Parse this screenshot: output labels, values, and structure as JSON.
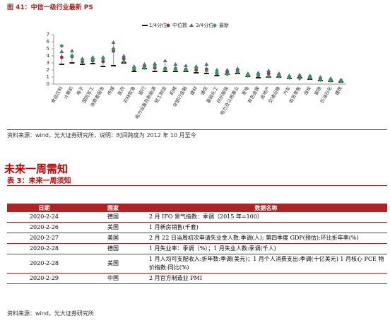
{
  "figure_title": "图 41：中信一级行业最新 PS",
  "chart_data": {
    "type": "range-dots",
    "categories": [
      "食品饮料",
      "计算机",
      "电子",
      "国防军工",
      "消费者服务",
      "传媒",
      "医药",
      "农林牧渔",
      "银行",
      "电力设备及新能源",
      "轻工制造",
      "机械",
      "非银行金融",
      "建材",
      "通信",
      "基础化工",
      "纺织服装",
      "电力及公用事业",
      "家电",
      "有色金属",
      "房地产",
      "交通运输",
      "汽车",
      "商贸零售",
      "煤炭",
      "钢铁",
      "石油石化",
      "建筑"
    ],
    "series": [
      {
        "name": "1/4分位",
        "color": "#000000",
        "marker": "dash",
        "values": [
          2.8,
          3.0,
          2.8,
          2.9,
          2.5,
          2.6,
          3.0,
          1.8,
          2.2,
          1.8,
          1.8,
          1.8,
          1.8,
          1.6,
          1.5,
          1.2,
          1.4,
          1.5,
          1.1,
          0.9,
          1.0,
          1.0,
          0.8,
          0.9,
          0.7,
          0.5,
          0.4,
          0.3
        ]
      },
      {
        "name": "中位数",
        "color": "#9b2d5a",
        "marker": "circle",
        "values": [
          3.8,
          3.9,
          3.2,
          3.3,
          3.2,
          4.7,
          3.6,
          2.1,
          2.5,
          2.3,
          2.2,
          2.2,
          2.1,
          2.0,
          2.1,
          1.5,
          1.7,
          1.8,
          1.3,
          1.2,
          1.5,
          1.2,
          1.0,
          1.1,
          0.9,
          0.7,
          0.6,
          0.5
        ]
      },
      {
        "name": "3/4分位",
        "color": "#4a6fa5",
        "marker": "triangle",
        "values": [
          4.6,
          4.7,
          3.6,
          3.8,
          3.8,
          5.9,
          4.0,
          2.5,
          2.8,
          2.9,
          3.3,
          2.8,
          2.6,
          2.5,
          2.8,
          2.0,
          2.0,
          2.2,
          1.5,
          1.6,
          1.9,
          1.5,
          1.2,
          1.3,
          1.2,
          1.0,
          0.8,
          0.6
        ]
      },
      {
        "name": "最新",
        "color": "#2e9e4f",
        "marker": "diamond",
        "values": [
          5.4,
          4.0,
          3.5,
          3.5,
          3.6,
          5.0,
          3.2,
          2.2,
          2.3,
          2.6,
          2.1,
          2.1,
          2.0,
          2.3,
          1.9,
          1.6,
          1.4,
          1.7,
          1.2,
          1.3,
          1.1,
          1.1,
          0.9,
          0.8,
          0.9,
          0.6,
          0.5,
          0.4
        ]
      }
    ],
    "ylim": [
      0,
      7
    ],
    "yticks": [
      0,
      1,
      2,
      3,
      4,
      5,
      6,
      7
    ]
  },
  "source1": "资料来源：wind，光大证券研究所，说明：时间跨度为 2012 年 10 月至今",
  "section_heading": "未来一周需知",
  "table": {
    "caption": "表 3：未来一周须知",
    "header": [
      "日期",
      "国家",
      "数据名称"
    ],
    "rows": [
      [
        "2020-2-24",
        "德国",
        "2 月 IFO 景气指数：季调（2015 年=100）"
      ],
      [
        "2020-2-26",
        "美国",
        "1 月新房销售(千套)"
      ],
      [
        "2020-2-27",
        "美国",
        "2 月 22 日当周初次申请失业金人数:季调(人); 第四季度 GDP(预估):环比折年率(%)"
      ],
      [
        "2020-2-28",
        "德国",
        "1 月失业率：季调（%）；1 月失业人数:季调(千人)"
      ],
      [
        "2020-2-28",
        "美国",
        "1 月人均可支配收入:折年数:季调(美元)；1 月个人消费支出:季调(十亿美元) 1 月核心 PCE 物价指数:同比(%)"
      ],
      [
        "2020-2-29",
        "中国",
        "2 月官方制造业 PMI"
      ]
    ]
  },
  "source2": "资料来源：wind，光大证券研究所"
}
